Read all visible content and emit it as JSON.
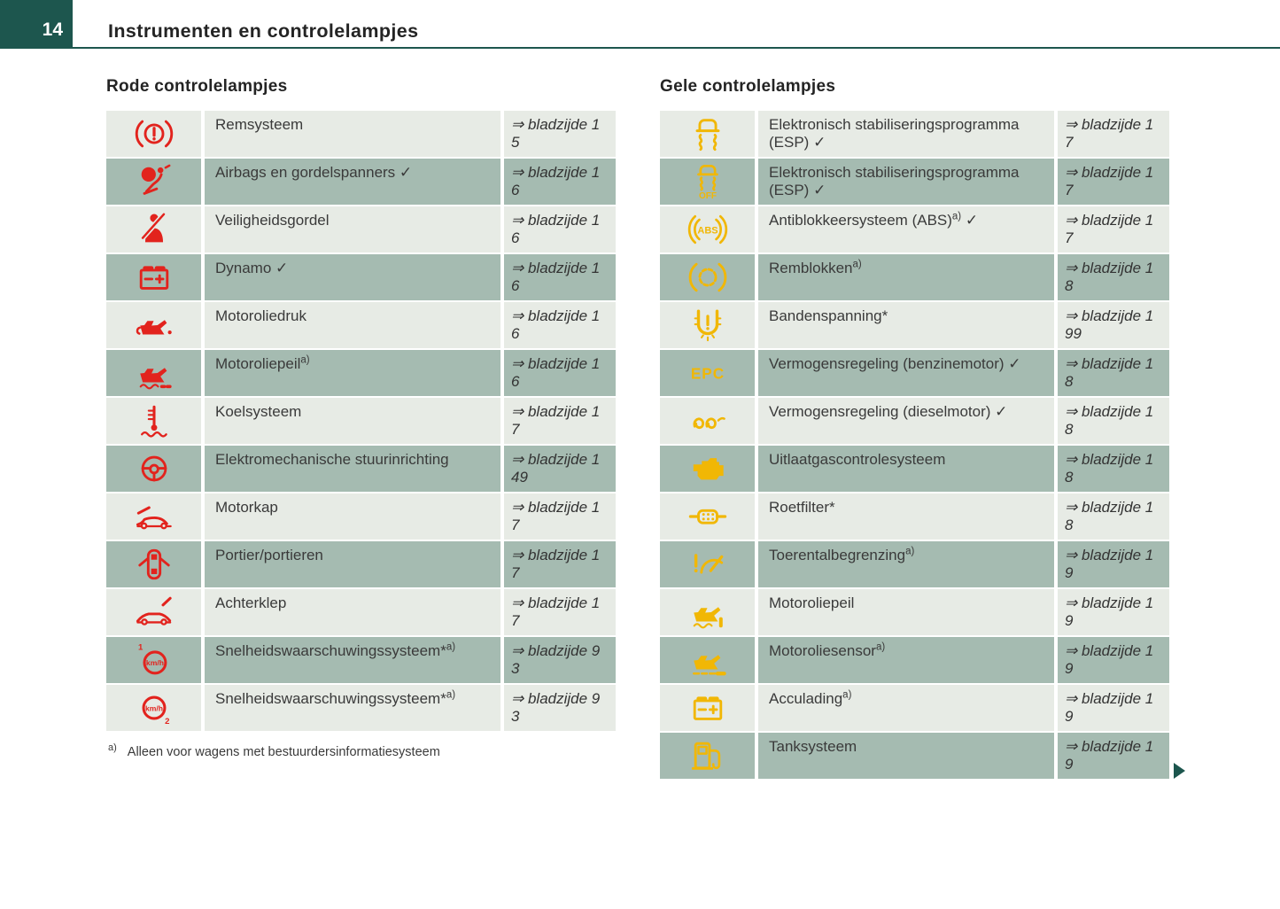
{
  "page": {
    "number": "14",
    "title": "Instrumenten en controlelampjes"
  },
  "colors": {
    "accent_teal": "#1d564e",
    "red": "#e2231d",
    "yellow": "#f1b705",
    "row_light": "#e7ebe5",
    "row_dark": "#a5bbb1"
  },
  "sections": [
    {
      "heading": "Rode controlelampjes",
      "icon_color": "#e2231d",
      "rows": [
        {
          "icon": "brake-system-icon",
          "label": "Remsysteem",
          "ref": "⇒ bladzijde 15"
        },
        {
          "icon": "airbag-icon",
          "label": "Airbags en gordelspanners",
          "check": true,
          "ref": "⇒ bladzijde 16"
        },
        {
          "icon": "seatbelt-icon",
          "label": "Veiligheidsgordel",
          "ref": "⇒ bladzijde 16"
        },
        {
          "icon": "battery-icon",
          "label": "Dynamo",
          "check": true,
          "ref": "⇒ bladzijde 16"
        },
        {
          "icon": "oil-pressure-icon",
          "label": "Motoroliedruk",
          "ref": "⇒ bladzijde 16"
        },
        {
          "icon": "oil-level-min-icon",
          "label": "Motoroliepeil",
          "sup": "a)",
          "ref": "⇒ bladzijde 16"
        },
        {
          "icon": "coolant-icon",
          "label": "Koelsysteem",
          "ref": "⇒ bladzijde 17"
        },
        {
          "icon": "steering-icon",
          "label": "Elektromechanische stuurinrichting",
          "ref": "⇒ bladzijde 149"
        },
        {
          "icon": "hood-open-icon",
          "label": "Motorkap",
          "ref": "⇒ bladzijde 17"
        },
        {
          "icon": "doors-open-icon",
          "label": "Portier/portieren",
          "ref": "⇒ bladzijde 17"
        },
        {
          "icon": "tailgate-open-icon",
          "label": "Achterklep",
          "ref": "⇒ bladzijde 17"
        },
        {
          "icon": "speed-warning-1-icon",
          "label": "Snelheidswaarschuwingssysteem",
          "star": true,
          "sup": "a)",
          "ref": "⇒ bladzijde 93"
        },
        {
          "icon": "speed-warning-2-icon",
          "label": "Snelheidswaarschuwingssysteem",
          "star": true,
          "sup": "a)",
          "ref": "⇒ bladzijde 93"
        }
      ],
      "footnote": {
        "marker": "a)",
        "text": "Alleen voor wagens met bestuurdersinformatiesysteem"
      }
    },
    {
      "heading": "Gele controlelampjes",
      "icon_color": "#f1b705",
      "rows": [
        {
          "icon": "esp-icon",
          "label": "Elektronisch stabiliseringsprogramma (ESP)",
          "check": true,
          "ref": "⇒ bladzijde 17"
        },
        {
          "icon": "esp-off-icon",
          "label": "Elektronisch stabiliseringsprogramma (ESP)",
          "check": true,
          "ref": "⇒ bladzijde 17"
        },
        {
          "icon": "abs-icon",
          "label": "Antiblokkeersysteem (ABS)",
          "sup": "a)",
          "check": true,
          "ref": "⇒ bladzijde 17"
        },
        {
          "icon": "brake-pads-icon",
          "label": "Remblokken",
          "sup": "a)",
          "ref": "⇒ bladzijde 18"
        },
        {
          "icon": "tire-pressure-icon",
          "label": "Bandenspanning",
          "star": true,
          "ref": "⇒ bladzijde 199"
        },
        {
          "icon": "epc-icon",
          "label": "Vermogensregeling (benzinemotor)",
          "check": true,
          "ref": "⇒ bladzijde 18"
        },
        {
          "icon": "glow-plug-icon",
          "label": "Vermogensregeling (dieselmotor)",
          "check": true,
          "ref": "⇒ bladzijde 18"
        },
        {
          "icon": "engine-icon",
          "label": "Uitlaatgascontrolesysteem",
          "ref": "⇒ bladzijde 18"
        },
        {
          "icon": "particulate-filter-icon",
          "label": "Roetfilter",
          "star": true,
          "ref": "⇒ bladzijde 18"
        },
        {
          "icon": "rev-limiter-icon",
          "label": "Toerentalbegrenzing",
          "sup": "a)",
          "ref": "⇒ bladzijde 19"
        },
        {
          "icon": "oil-level-icon",
          "label": "Motoroliepeil",
          "ref": "⇒ bladzijde 19"
        },
        {
          "icon": "oil-sensor-icon",
          "label": "Motoroliesensor",
          "sup": "a)",
          "ref": "⇒ bladzijde 19"
        },
        {
          "icon": "battery-icon",
          "label": "Acculading",
          "sup": "a)",
          "ref": "⇒ bladzijde 19"
        },
        {
          "icon": "fuel-pump-icon",
          "label": "Tanksysteem",
          "ref": "⇒ bladzijde 19"
        }
      ],
      "continues": true
    }
  ]
}
